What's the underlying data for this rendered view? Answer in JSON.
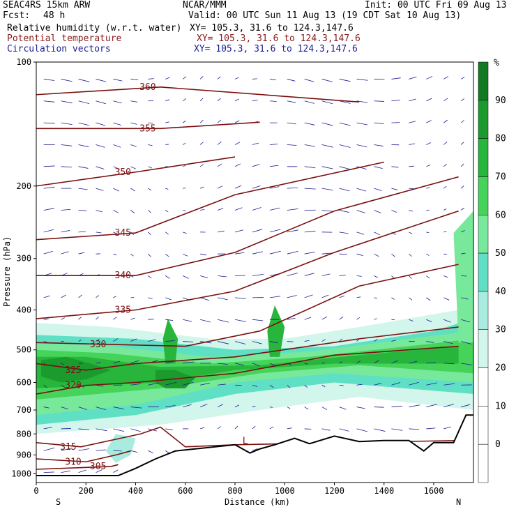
{
  "header": {
    "model": "SEAC4RS 15km ARW",
    "org": "NCAR/MMM",
    "init": "Init: 00 UTC Fri 09 Aug 13",
    "fcst_label": "Fcst:",
    "fcst_value": "48 h",
    "valid": "Valid: 00 UTC Sun 11 Aug 13 (19 CDT Sat 10 Aug 13)",
    "fields": [
      {
        "name": "Relative humidity (w.r.t. water)",
        "xy": "XY= 105.3, 31.6 to 124.3,147.6",
        "color": "#000000"
      },
      {
        "name": "Potential temperature",
        "xy": "XY= 105.3, 31.6 to 124.3,147.6",
        "color": "#8b1a1a"
      },
      {
        "name": "Circulation vectors",
        "xy": "XY= 105.3, 31.6 to 124.3,147.6",
        "color": "#1c1c96"
      }
    ]
  },
  "chart_data": {
    "type": "heatmap",
    "xlabel": "Distance (km)",
    "ylabel": "Pressure (hPa)",
    "x_range": [
      0,
      1760
    ],
    "y_range": [
      100,
      1050
    ],
    "y_scale": "log-pressure",
    "x_ticks": [
      0,
      200,
      400,
      600,
      800,
      1000,
      1200,
      1400,
      1600
    ],
    "y_ticks": [
      100,
      200,
      300,
      400,
      500,
      600,
      700,
      800,
      900,
      1000
    ],
    "x_end_labels": {
      "left": "S",
      "right": "N"
    },
    "colorbar": {
      "unit": "%",
      "levels": [
        90,
        80,
        70,
        60,
        50,
        40,
        30,
        20,
        10,
        0
      ],
      "colors": [
        "#ffffff",
        "#ffffff",
        "#ffffff",
        "#d2f5ec",
        "#a8ecdf",
        "#5fe0c4",
        "#78e89a",
        "#45d35a",
        "#27b53b",
        "#1b9a2d",
        "#127a22"
      ]
    },
    "theta_contours": [
      {
        "label": "305",
        "points": [
          [
            0,
            975
          ],
          [
            300,
            960
          ],
          [
            330,
            950
          ]
        ]
      },
      {
        "label": "310",
        "points": [
          [
            0,
            920
          ],
          [
            200,
            935
          ],
          [
            320,
            900
          ],
          [
            380,
            880
          ]
        ]
      },
      {
        "label": "315",
        "points": [
          [
            0,
            840
          ],
          [
            180,
            860
          ],
          [
            420,
            800
          ],
          [
            500,
            770
          ],
          [
            600,
            860
          ],
          [
            800,
            850
          ],
          [
            1700,
            830
          ]
        ]
      },
      {
        "label": "320",
        "points": [
          [
            0,
            640
          ],
          [
            200,
            610
          ],
          [
            400,
            600
          ],
          [
            800,
            570
          ],
          [
            1200,
            515
          ],
          [
            1700,
            490
          ]
        ]
      },
      {
        "label": "325",
        "points": [
          [
            0,
            540
          ],
          [
            200,
            560
          ],
          [
            400,
            540
          ],
          [
            800,
            520
          ],
          [
            1300,
            470
          ],
          [
            1700,
            440
          ]
        ]
      },
      {
        "label": "330",
        "points": [
          [
            0,
            480
          ],
          [
            300,
            485
          ],
          [
            600,
            490
          ],
          [
            900,
            450
          ],
          [
            1300,
            350
          ],
          [
            1700,
            310
          ]
        ]
      },
      {
        "label": "335",
        "points": [
          [
            0,
            420
          ],
          [
            400,
            400
          ],
          [
            800,
            360
          ],
          [
            1200,
            290
          ],
          [
            1700,
            230
          ]
        ]
      },
      {
        "label": "340",
        "points": [
          [
            0,
            330
          ],
          [
            400,
            330
          ],
          [
            800,
            290
          ],
          [
            1200,
            230
          ],
          [
            1700,
            190
          ]
        ]
      },
      {
        "label": "345",
        "points": [
          [
            0,
            270
          ],
          [
            400,
            260
          ],
          [
            800,
            210
          ],
          [
            1400,
            175
          ]
        ]
      },
      {
        "label": "350",
        "points": [
          [
            0,
            200
          ],
          [
            400,
            185
          ],
          [
            800,
            170
          ]
        ]
      },
      {
        "label": "355",
        "points": [
          [
            0,
            145
          ],
          [
            500,
            145
          ],
          [
            900,
            140
          ]
        ]
      },
      {
        "label": "360",
        "points": [
          [
            0,
            120
          ],
          [
            500,
            115
          ],
          [
            1300,
            125
          ]
        ]
      }
    ],
    "markers": [
      {
        "label": "L",
        "x": 830,
        "p": 845
      }
    ],
    "terrain": [
      [
        0,
        1010
      ],
      [
        330,
        1010
      ],
      [
        400,
        970
      ],
      [
        480,
        920
      ],
      [
        560,
        880
      ],
      [
        640,
        870
      ],
      [
        720,
        860
      ],
      [
        800,
        850
      ],
      [
        860,
        890
      ],
      [
        900,
        870
      ],
      [
        960,
        850
      ],
      [
        1040,
        820
      ],
      [
        1100,
        845
      ],
      [
        1200,
        810
      ],
      [
        1300,
        835
      ],
      [
        1400,
        830
      ],
      [
        1500,
        830
      ],
      [
        1560,
        880
      ],
      [
        1600,
        840
      ],
      [
        1680,
        840
      ],
      [
        1730,
        720
      ],
      [
        1760,
        720
      ]
    ]
  }
}
